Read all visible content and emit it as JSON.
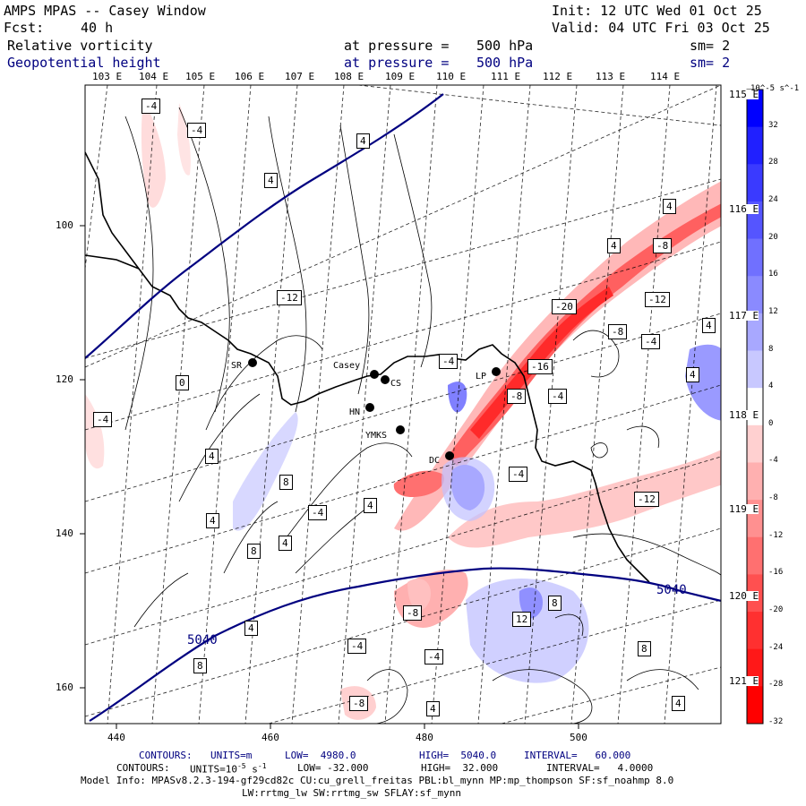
{
  "header": {
    "title": "AMPS MPAS -- Casey Window",
    "init": "Init: 12 UTC Wed 01 Oct 25",
    "forecast_label": "Fcst:",
    "forecast_hours": "40 h",
    "valid": "Valid: 04 UTC Fri 03 Oct 25",
    "field1": {
      "name": "Relative vorticity",
      "level_label": "at pressure =",
      "level": "500 hPa",
      "smooth": "sm= 2"
    },
    "field2": {
      "name": "Geopotential height",
      "level_label": "at pressure =",
      "level": "500 hPa",
      "smooth": "sm= 2"
    }
  },
  "map": {
    "lon_labels_top": [
      "103 E",
      "104 E",
      "105 E",
      "106 E",
      "107 E",
      "108 E",
      "109 E",
      "110 E",
      "111 E",
      "112 E",
      "113 E",
      "114 E"
    ],
    "lat_labels_right": [
      "115 E",
      "116 E",
      "117 E",
      "118 E",
      "119 E",
      "120 E",
      "121 E"
    ],
    "x_ticks": [
      "440",
      "460",
      "480",
      "500"
    ],
    "y_ticks": [
      "100",
      "120",
      "140",
      "160"
    ],
    "stations": [
      {
        "name": "SR"
      },
      {
        "name": "Casey"
      },
      {
        "name": "CS"
      },
      {
        "name": "HN"
      },
      {
        "name": "YMKS"
      },
      {
        "name": "DC"
      },
      {
        "name": "LP"
      }
    ],
    "height_contour_labels": [
      "5040",
      "5040"
    ],
    "vorticity_labels": [
      "-4",
      "-4",
      "4",
      "4",
      "4",
      "4",
      "-8",
      "-12",
      "-4",
      "-12",
      "-20",
      "-8",
      "-16",
      "-4",
      "-8",
      "-4",
      "4",
      "0",
      "4",
      "4",
      "8",
      "-4",
      "4",
      "4",
      "-4",
      "-12",
      "8",
      "4",
      "8",
      "-8",
      "-4",
      "12",
      "8",
      "8",
      "-4",
      "-8",
      "4",
      "4",
      "-4",
      "4",
      "8"
    ]
  },
  "colorbar": {
    "units": "10^-5 s^-1",
    "ticks": [
      "32",
      "28",
      "24",
      "20",
      "16",
      "12",
      "8",
      "4",
      "0",
      "-4",
      "-8",
      "-12",
      "-16",
      "-20",
      "-24",
      "-28",
      "-32"
    ],
    "colors": [
      "#0000ff",
      "#2020ff",
      "#3a3aff",
      "#5555ff",
      "#7070ff",
      "#8a8aff",
      "#a8a8ff",
      "#c8c8ff",
      "#ffffff",
      "#ffd0d0",
      "#ffb0b0",
      "#ff9090",
      "#ff7070",
      "#ff5050",
      "#ff3030",
      "#ff1818",
      "#ff0000"
    ]
  },
  "footer": {
    "line1_label": "CONTOURS:",
    "line1_units": "UNITS=m",
    "line1_low": "LOW=  4980.0",
    "line1_high": "HIGH=  5040.0",
    "line1_interval": "INTERVAL=   60.000",
    "line2_label": "CONTOURS:",
    "line2_units": "UNITS=10",
    "line2_units_sup": "-5",
    "line2_units_tail": "s",
    "line2_units_sup2": "-1",
    "line2_low": "LOW= -32.000",
    "line2_high": "HIGH=  32.000",
    "line2_interval": "INTERVAL=   4.0000",
    "model_info": "Model Info: MPASv8.2.3-194-gf29cd82c CU:cu_grell_freitas PBL:bl_mynn MP:mp_thompson SF:sf_noahmp 8.0",
    "model_info2": "LW:rrtmg_lw SW:rrtmg_sw SFLAY:sf_mynn"
  }
}
